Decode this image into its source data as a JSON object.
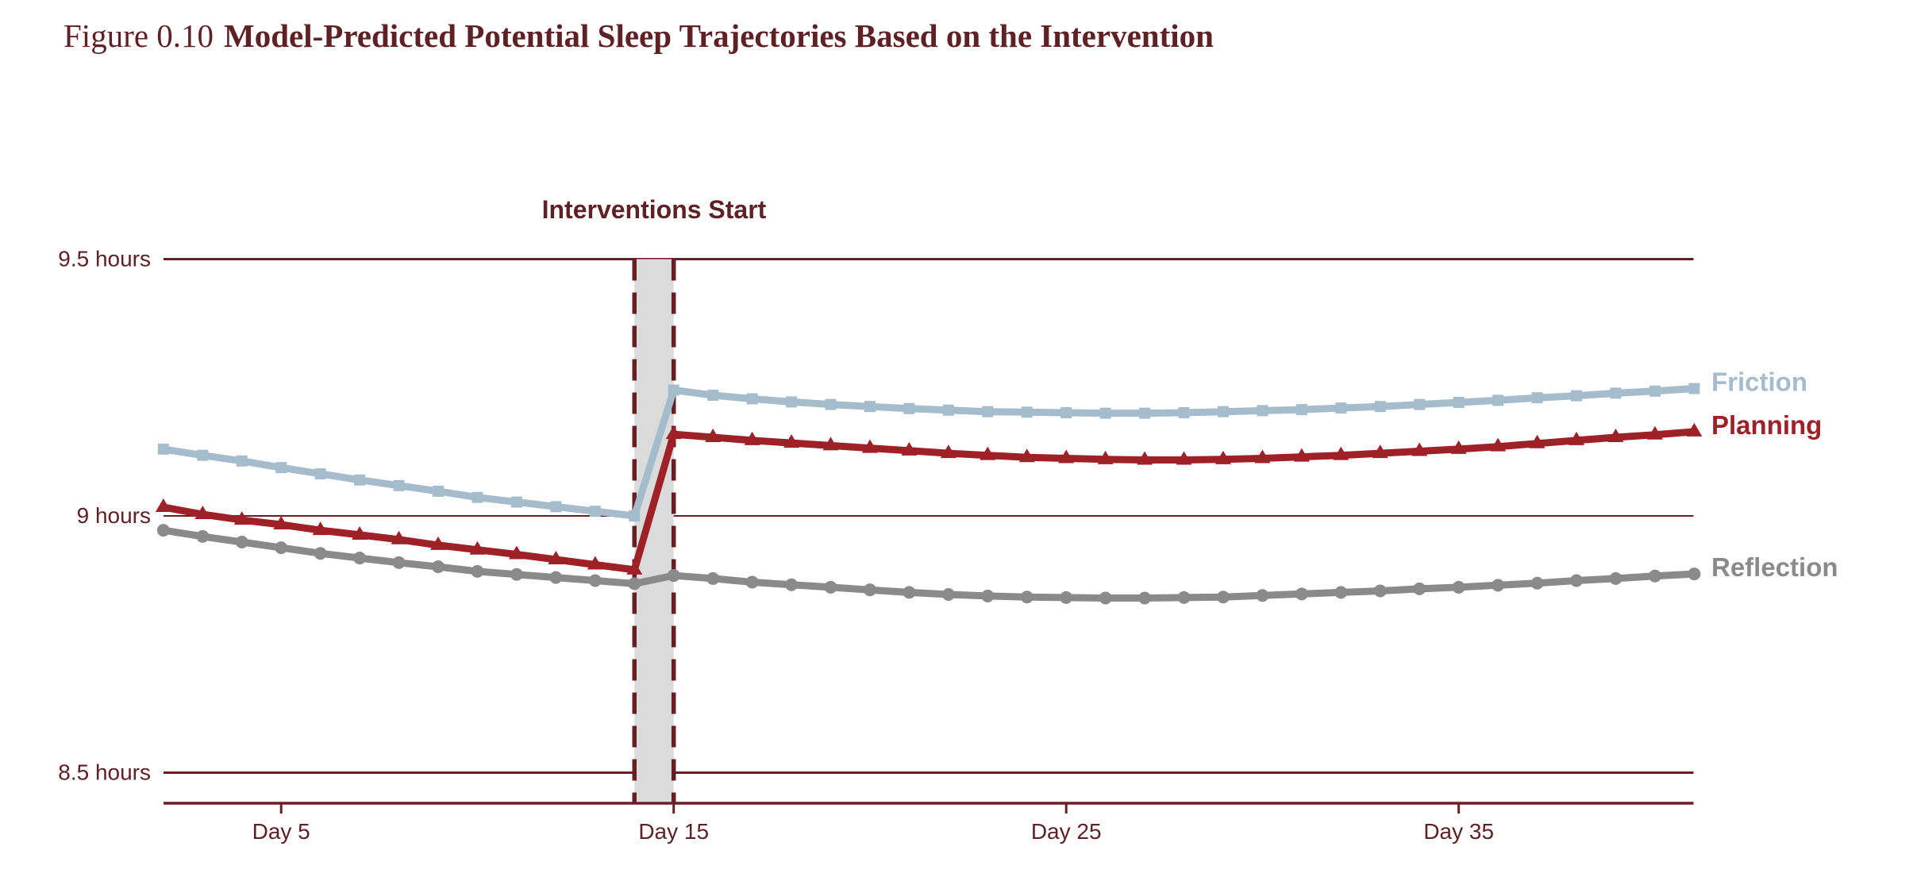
{
  "figure": {
    "number_label": "Figure 0.10",
    "title": "Model-Predicted Potential Sleep Trajectories Based on the Intervention"
  },
  "colors": {
    "background": "#ffffff",
    "maroon_text": "#5e2125",
    "maroon_line": "#662025",
    "band_fill": "#dbdbdb",
    "friction": "#a5bccd",
    "planning": "#9d2127",
    "reflection": "#8a8a8a"
  },
  "chart_data": {
    "type": "line",
    "title": "Model-Predicted Potential Sleep Trajectories Based on the Intervention",
    "xlabel": "",
    "ylabel": "",
    "xlim": [
      2,
      41
    ],
    "ylim": [
      8.44,
      9.55
    ],
    "grid": "horizontal",
    "legend_position": "labels-at-line-ends-right",
    "x": [
      2,
      3,
      4,
      5,
      6,
      7,
      8,
      9,
      10,
      11,
      12,
      13,
      14,
      15,
      16,
      17,
      18,
      19,
      20,
      21,
      22,
      23,
      24,
      25,
      26,
      27,
      28,
      29,
      30,
      31,
      32,
      33,
      34,
      35,
      36,
      37,
      38,
      39,
      40,
      41
    ],
    "series": [
      {
        "name": "Friction",
        "marker": "square",
        "color": "#a5bccd",
        "values": [
          9.13,
          9.118,
          9.107,
          9.094,
          9.082,
          9.07,
          9.059,
          9.048,
          9.036,
          9.027,
          9.018,
          9.009,
          9.0,
          9.245,
          9.235,
          9.228,
          9.222,
          9.217,
          9.213,
          9.209,
          9.206,
          9.203,
          9.202,
          9.201,
          9.2,
          9.2,
          9.201,
          9.203,
          9.205,
          9.207,
          9.21,
          9.213,
          9.217,
          9.221,
          9.225,
          9.23,
          9.234,
          9.239,
          9.243,
          9.248
        ]
      },
      {
        "name": "Planning",
        "marker": "triangle",
        "color": "#9d2127",
        "values": [
          9.017,
          9.003,
          8.992,
          8.983,
          8.972,
          8.963,
          8.954,
          8.943,
          8.934,
          8.925,
          8.915,
          8.905,
          8.895,
          9.159,
          9.153,
          9.147,
          9.142,
          9.137,
          9.132,
          9.127,
          9.122,
          9.118,
          9.114,
          9.112,
          9.11,
          9.109,
          9.109,
          9.11,
          9.112,
          9.115,
          9.118,
          9.122,
          9.126,
          9.13,
          9.135,
          9.141,
          9.147,
          9.153,
          9.158,
          9.164
        ]
      },
      {
        "name": "Reflection",
        "marker": "circle",
        "color": "#8a8a8a",
        "values": [
          8.972,
          8.96,
          8.949,
          8.938,
          8.927,
          8.918,
          8.909,
          8.901,
          8.892,
          8.886,
          8.88,
          8.874,
          8.868,
          8.884,
          8.878,
          8.871,
          8.866,
          8.861,
          8.856,
          8.851,
          8.847,
          8.844,
          8.842,
          8.841,
          8.84,
          8.84,
          8.841,
          8.842,
          8.845,
          8.848,
          8.851,
          8.854,
          8.858,
          8.861,
          8.865,
          8.869,
          8.874,
          8.878,
          8.883,
          8.887
        ]
      }
    ],
    "yticks": [
      {
        "label": "9.5 hours",
        "value": 9.5
      },
      {
        "label": "9 hours",
        "value": 9.0
      },
      {
        "label": "8.5 hours",
        "value": 8.5
      }
    ],
    "xticks": [
      {
        "label": "Day 5",
        "value": 5
      },
      {
        "label": "Day 15",
        "value": 15
      },
      {
        "label": "Day 25",
        "value": 25
      },
      {
        "label": "Day 35",
        "value": 35
      }
    ],
    "annotation": {
      "text": "Interventions Start",
      "band_days": [
        14,
        15
      ]
    }
  }
}
